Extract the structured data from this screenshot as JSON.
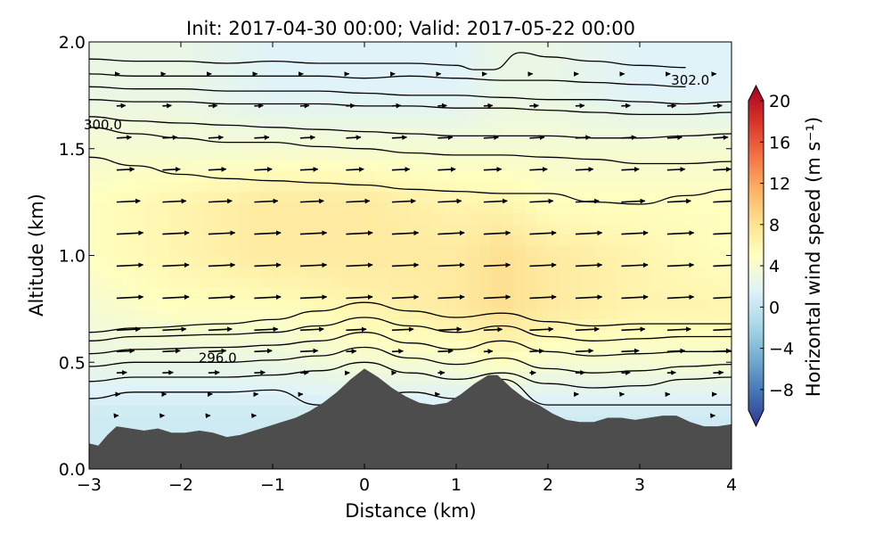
{
  "chart_data": {
    "type": "heatmap",
    "title": "Init: 2017-04-30 00:00; Valid: 2017-05-22 00:00",
    "xlabel": "Distance (km)",
    "ylabel": "Altitude (km)",
    "xlim": [
      -3,
      4
    ],
    "ylim": [
      0,
      2
    ],
    "x_ticks": [
      "−3",
      "−2",
      "−1",
      "0",
      "1",
      "2",
      "3",
      "4"
    ],
    "y_ticks": [
      "0.0",
      "0.5",
      "1.0",
      "1.5",
      "2.0"
    ],
    "grid": false,
    "colorbar": {
      "label": "Horizontal wind speed (m s⁻¹)",
      "min": -10,
      "max": 20,
      "ticks": [
        "−8",
        "−4",
        "0",
        "4",
        "8",
        "12",
        "16",
        "20"
      ],
      "extend": "both",
      "colormap": "RdYlBu_r",
      "colors": [
        "#313695",
        "#4575b4",
        "#74add1",
        "#abd9e9",
        "#e0f3f8",
        "#ffffbf",
        "#fee090",
        "#fdae61",
        "#f46d43",
        "#d73027",
        "#a50026"
      ]
    },
    "terrain": {
      "color": "#4d4d4d",
      "x": [
        -3,
        -2.9,
        -2.8,
        -2.7,
        -2.55,
        -2.4,
        -2.25,
        -2.1,
        -1.95,
        -1.8,
        -1.65,
        -1.5,
        -1.35,
        -1.2,
        -1.05,
        -0.9,
        -0.75,
        -0.6,
        -0.45,
        -0.3,
        -0.15,
        0,
        0.15,
        0.3,
        0.45,
        0.6,
        0.75,
        0.9,
        1.05,
        1.2,
        1.35,
        1.45,
        1.6,
        1.75,
        1.9,
        2.05,
        2.2,
        2.35,
        2.5,
        2.65,
        2.8,
        2.95,
        3.1,
        3.25,
        3.4,
        3.55,
        3.7,
        3.85,
        4
      ],
      "z": [
        0.12,
        0.11,
        0.16,
        0.2,
        0.19,
        0.18,
        0.19,
        0.17,
        0.17,
        0.18,
        0.17,
        0.15,
        0.16,
        0.18,
        0.2,
        0.22,
        0.24,
        0.27,
        0.31,
        0.36,
        0.42,
        0.47,
        0.43,
        0.38,
        0.34,
        0.31,
        0.3,
        0.31,
        0.35,
        0.4,
        0.44,
        0.44,
        0.38,
        0.33,
        0.3,
        0.26,
        0.23,
        0.22,
        0.22,
        0.24,
        0.24,
        0.23,
        0.24,
        0.25,
        0.25,
        0.22,
        0.2,
        0.2,
        0.21
      ]
    },
    "wind_speed_field": {
      "x": [
        -3,
        -2,
        -1,
        0,
        1,
        1.5,
        2,
        3,
        4
      ],
      "altitude": [
        0.25,
        0.5,
        0.75,
        1.0,
        1.25,
        1.5,
        1.75,
        2.0
      ],
      "values": [
        [
          1,
          1,
          1,
          1,
          1,
          1,
          1,
          1,
          1
        ],
        [
          3,
          3,
          3,
          4,
          4,
          5,
          4,
          4,
          4
        ],
        [
          4,
          5,
          5,
          6,
          7,
          8,
          7,
          6,
          6
        ],
        [
          5,
          6,
          7,
          7,
          7,
          8,
          7,
          6,
          5
        ],
        [
          5,
          6,
          7,
          7,
          6,
          6,
          5,
          5,
          5
        ],
        [
          4,
          4,
          4,
          4,
          4,
          4,
          4,
          4,
          4
        ],
        [
          3,
          3,
          2,
          2,
          2,
          3,
          3,
          2,
          2
        ],
        [
          3,
          3,
          2,
          2,
          2,
          3,
          3,
          2,
          2
        ]
      ]
    },
    "potential_temperature_contours": [
      {
        "x": [
          -3,
          -2.5,
          -1.5,
          -1,
          -0.5,
          0,
          0.5,
          1,
          1.5,
          2,
          3,
          4
        ],
        "z": [
          0.33,
          0.36,
          0.36,
          0.37,
          0.3,
          0.34,
          0.36,
          0.33,
          0.42,
          0.3,
          0.3,
          0.3
        ]
      },
      {
        "x": [
          -3,
          -2.5,
          -1.5,
          -1,
          -0.5,
          0,
          0.5,
          1,
          1.5,
          2,
          2.5,
          3,
          3.5,
          4
        ],
        "z": [
          0.41,
          0.43,
          0.43,
          0.44,
          0.46,
          0.5,
          0.45,
          0.42,
          0.45,
          0.4,
          0.38,
          0.39,
          0.42,
          0.43
        ]
      },
      {
        "x": [
          -3,
          -2.5,
          -1.5,
          -1,
          -0.5,
          0,
          0.5,
          1,
          1.5,
          2,
          2.5,
          3,
          3.5,
          4
        ],
        "z": [
          0.48,
          0.5,
          0.5,
          0.51,
          0.53,
          0.57,
          0.52,
          0.49,
          0.52,
          0.47,
          0.45,
          0.46,
          0.48,
          0.49
        ]
      },
      {
        "x": [
          -3,
          -2.5,
          -1.5,
          -1,
          -0.5,
          0,
          0.5,
          1,
          1.5,
          2,
          2.5,
          3,
          3.5,
          4
        ],
        "z": [
          0.54,
          0.56,
          0.57,
          0.58,
          0.6,
          0.64,
          0.59,
          0.56,
          0.6,
          0.55,
          0.53,
          0.54,
          0.55,
          0.55
        ]
      },
      {
        "x": [
          -3,
          -2.5,
          -1.5,
          -1,
          -0.5,
          0,
          0.5,
          1,
          1.5,
          2,
          2.5,
          3,
          3.5,
          4
        ],
        "z": [
          0.6,
          0.62,
          0.63,
          0.64,
          0.67,
          0.71,
          0.67,
          0.64,
          0.67,
          0.62,
          0.6,
          0.61,
          0.62,
          0.62
        ]
      },
      {
        "x": [
          -3,
          -2.5,
          -1.5,
          -1,
          -0.5,
          0,
          0.5,
          1,
          1.5,
          2,
          2.5,
          3,
          3.5,
          4
        ],
        "z": [
          0.64,
          0.66,
          0.68,
          0.7,
          0.74,
          0.78,
          0.74,
          0.71,
          0.73,
          0.69,
          0.67,
          0.68,
          0.68,
          0.68
        ]
      },
      {
        "x": [
          -3,
          -2.5,
          -2,
          -1.5,
          -1,
          -0.5,
          0,
          0.5,
          1,
          1.5,
          2,
          2.5,
          3,
          3.5,
          4
        ],
        "z": [
          1.46,
          1.42,
          1.38,
          1.36,
          1.35,
          1.34,
          1.33,
          1.31,
          1.3,
          1.29,
          1.29,
          1.25,
          1.24,
          1.28,
          1.31
        ]
      },
      {
        "x": [
          -3,
          -2.5,
          -2,
          -1.5,
          -1,
          -0.5,
          0,
          0.5,
          1,
          1.5,
          2,
          2.5,
          3,
          3.5,
          4
        ],
        "z": [
          1.6,
          1.57,
          1.55,
          1.53,
          1.53,
          1.51,
          1.5,
          1.48,
          1.47,
          1.47,
          1.46,
          1.45,
          1.43,
          1.43,
          1.44
        ]
      },
      {
        "x": [
          -3,
          -2.5,
          -2,
          -1.5,
          -1,
          -0.5,
          0,
          0.5,
          1,
          1.5,
          2,
          2.5,
          3,
          3.5,
          4
        ],
        "z": [
          1.65,
          1.63,
          1.62,
          1.61,
          1.6,
          1.59,
          1.58,
          1.57,
          1.56,
          1.56,
          1.56,
          1.55,
          1.55,
          1.56,
          1.57
        ]
      },
      {
        "x": [
          -3,
          -2.5,
          -2,
          -1.5,
          -1,
          -0.5,
          0,
          0.5,
          1,
          1.5,
          2,
          2.5,
          3,
          3.5,
          4
        ],
        "z": [
          1.73,
          1.72,
          1.72,
          1.71,
          1.71,
          1.71,
          1.7,
          1.7,
          1.69,
          1.69,
          1.68,
          1.67,
          1.66,
          1.66,
          1.67
        ]
      },
      {
        "x": [
          -3,
          -2.5,
          -2,
          -1.5,
          -1,
          -0.5,
          0,
          0.5,
          1,
          1.5,
          2,
          2.5,
          3,
          3.5,
          4
        ],
        "z": [
          1.79,
          1.78,
          1.78,
          1.77,
          1.77,
          1.77,
          1.76,
          1.75,
          1.75,
          1.74,
          1.73,
          1.73,
          1.72,
          1.71,
          1.72
        ]
      },
      {
        "x": [
          -3,
          -2.5,
          -2,
          -1.5,
          -1,
          -0.5,
          0,
          0.5,
          1,
          1.5,
          2,
          2.5,
          3,
          3.5
        ],
        "z": [
          1.85,
          1.84,
          1.84,
          1.84,
          1.84,
          1.84,
          1.83,
          1.84,
          1.83,
          1.82,
          1.82,
          1.81,
          1.8,
          1.79
        ]
      },
      {
        "x": [
          -3,
          -2.5,
          -2,
          -1.5,
          -1,
          -0.5,
          0,
          0.5,
          1,
          1.2,
          1.4,
          1.7,
          2,
          2.5,
          3,
          3.5
        ],
        "z": [
          1.92,
          1.91,
          1.91,
          1.9,
          1.91,
          1.9,
          1.9,
          1.9,
          1.89,
          1.87,
          1.87,
          1.95,
          1.93,
          1.91,
          1.89,
          1.88
        ]
      }
    ],
    "contour_labels": [
      {
        "text": "300.0",
        "x": -2.85,
        "z": 1.59
      },
      {
        "text": "296.0",
        "x": -1.6,
        "z": 0.5
      },
      {
        "text": "302.0",
        "x": 3.55,
        "z": 1.8
      }
    ],
    "wind_vectors": {
      "x_columns": [
        -2.7,
        -2.2,
        -1.7,
        -1.2,
        -0.7,
        -0.2,
        0.3,
        0.8,
        1.3,
        1.8,
        2.3,
        2.8,
        3.3,
        3.8
      ],
      "altitudes": [
        0.25,
        0.35,
        0.45,
        0.55,
        0.65,
        0.8,
        0.95,
        1.1,
        1.25,
        1.4,
        1.55,
        1.7,
        1.85
      ],
      "u_by_altitude": [
        0.5,
        2,
        4,
        6,
        8,
        9,
        9,
        9,
        8,
        6,
        5,
        3,
        1
      ]
    }
  }
}
